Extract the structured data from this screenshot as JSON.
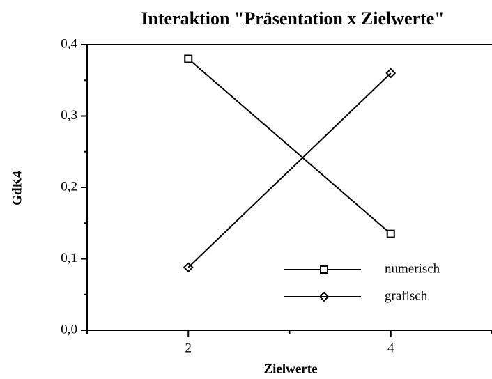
{
  "chart_data": {
    "type": "line",
    "title": "Interaktion \"Präsentation x Zielwerte\"",
    "x_label": "Zielwerte",
    "y_label": "GdK4",
    "x": [
      2,
      4
    ],
    "series": [
      {
        "name": "numerisch",
        "color": "#000000",
        "marker": "square-open",
        "values": [
          0.38,
          0.135
        ]
      },
      {
        "name": "grafisch",
        "color": "#000000",
        "marker": "diamond",
        "values": [
          0.088,
          0.36
        ]
      }
    ],
    "xlim": [
      1,
      5
    ],
    "xticks": [
      2,
      4
    ],
    "ylim": [
      0,
      0.4
    ],
    "yticks": [
      {
        "value": 0,
        "label": "0,0"
      },
      {
        "value": 0.1,
        "label": "0,1"
      },
      {
        "value": 0.2,
        "label": "0,2"
      },
      {
        "value": 0.3,
        "label": "0,3"
      },
      {
        "value": 0.4,
        "label": "0,4"
      }
    ],
    "grid": false,
    "legend": "lower right"
  }
}
